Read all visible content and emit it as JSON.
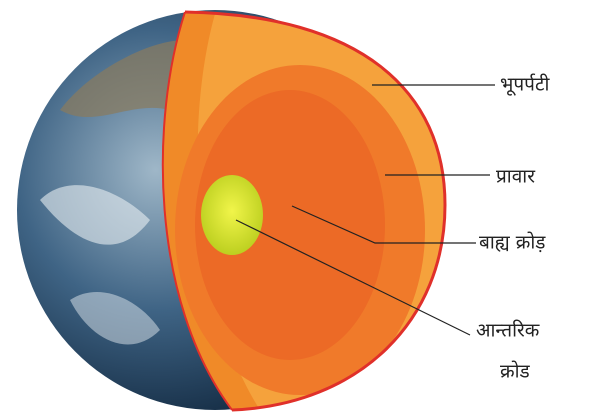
{
  "labels": {
    "crust": "भूपर्पटी",
    "mantle": "प्रावार",
    "outer_core": "बाह्य क्रोड़",
    "inner_core": [
      "आन्तरिक",
      "क्रोड"
    ]
  }
}
